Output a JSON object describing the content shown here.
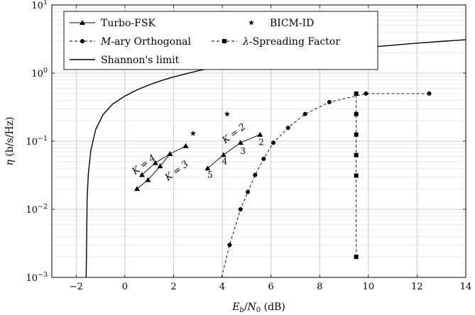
{
  "chart_data": {
    "type": "line",
    "xlabel": "E_b/N_0 (dB)",
    "ylabel": "η (b/s/Hz)",
    "xlim": [
      -3,
      14
    ],
    "ylim": [
      0.001,
      10
    ],
    "yscale": "log",
    "grid": true,
    "legend_position": "top-left",
    "x_ticks": [
      -2,
      0,
      2,
      4,
      6,
      8,
      10,
      12,
      14
    ],
    "x_tick_labels": [
      "−2",
      "0",
      "2",
      "4",
      "6",
      "8",
      "10",
      "12",
      "14"
    ],
    "y_ticks": [
      0.001,
      0.01,
      0.1,
      1,
      10
    ],
    "y_tick_labels": [
      {
        "base": "10",
        "exp": "−3"
      },
      {
        "base": "10",
        "exp": "−2"
      },
      {
        "base": "10",
        "exp": "−1"
      },
      {
        "base": "10",
        "exp": "0"
      },
      {
        "base": "10",
        "exp": "1"
      }
    ],
    "legend": [
      {
        "label": "Turbo-FSK",
        "marker": "triangle",
        "line": "solid"
      },
      {
        "label": "BICM-ID",
        "marker": "star",
        "line": "none"
      },
      {
        "label": "M-ary Orthogonal",
        "marker": "circle",
        "line": "dashed"
      },
      {
        "label": "λ-Spreading Factor",
        "marker": "square",
        "line": "dashed"
      },
      {
        "label": "Shannon's limit",
        "marker": "none",
        "line": "solid"
      }
    ],
    "series": [
      {
        "name": "Shannon's limit",
        "style": "shannon",
        "x": [
          -1.59,
          -1.55,
          -1.5,
          -1.4,
          -1.2,
          -0.9,
          -0.5,
          0,
          0.5,
          1,
          1.5,
          2,
          3,
          4,
          5,
          6,
          8,
          10,
          12,
          14
        ],
        "y": [
          0.001,
          0.0145,
          0.0335,
          0.0724,
          0.148,
          0.244,
          0.352,
          0.459,
          0.568,
          0.672,
          0.776,
          0.878,
          1.08,
          1.28,
          1.47,
          1.66,
          2.03,
          2.39,
          2.75,
          3.09
        ]
      },
      {
        "name": "M-ary Orthogonal",
        "style": "mary",
        "x": [
          3.97,
          4.3,
          4.75,
          5.05,
          5.35,
          5.7,
          6.1,
          6.7,
          7.4,
          8.4,
          9.9,
          12.5
        ],
        "y": [
          0.001,
          0.003,
          0.01,
          0.018,
          0.032,
          0.055,
          0.095,
          0.157,
          0.25,
          0.375,
          0.5,
          0.5
        ]
      },
      {
        "name": "λ-Spreading Factor",
        "style": "spreading",
        "x": [
          9.5,
          9.5,
          9.5,
          9.5,
          9.5,
          9.5,
          9.5
        ],
        "y": [
          0.002,
          0.0312,
          0.0625,
          0.125,
          0.25,
          0.5,
          0.5
        ]
      },
      {
        "name": "Turbo-FSK",
        "style": "turbo",
        "x": [
          0.5,
          0.95,
          1.45,
          1.85
        ],
        "y": [
          0.02,
          0.027,
          0.043,
          0.065
        ]
      },
      {
        "name": "Turbo-FSK",
        "style": "turbo",
        "x": [
          0.7,
          1.25,
          1.85,
          2.5
        ],
        "y": [
          0.032,
          0.048,
          0.065,
          0.085
        ]
      },
      {
        "name": "Turbo-FSK",
        "style": "turbo",
        "x": [
          3.4,
          4.05,
          4.75,
          5.55
        ],
        "y": [
          0.04,
          0.063,
          0.095,
          0.125
        ]
      },
      {
        "name": "BICM-ID",
        "style": "bicm",
        "x": [
          2.8,
          4.2
        ],
        "y": [
          0.13,
          0.25
        ]
      }
    ],
    "annotations": [
      {
        "text": "K = 4",
        "x": 0.85,
        "y": 0.042,
        "rotate": -37,
        "kind": "k"
      },
      {
        "text": "K = 3",
        "x": 2.2,
        "y": 0.034,
        "rotate": -37,
        "kind": "k"
      },
      {
        "text": "K = 2",
        "x": 4.55,
        "y": 0.12,
        "rotate": -37,
        "kind": "k"
      },
      {
        "text": "2",
        "x": 5.6,
        "y": 0.088,
        "rotate": 0,
        "kind": "n"
      },
      {
        "text": "3",
        "x": 4.85,
        "y": 0.065,
        "rotate": 0,
        "kind": "n"
      },
      {
        "text": "4",
        "x": 4.1,
        "y": 0.046,
        "rotate": 0,
        "kind": "n"
      },
      {
        "text": "5",
        "x": 3.5,
        "y": 0.029,
        "rotate": 0,
        "kind": "n"
      }
    ]
  }
}
